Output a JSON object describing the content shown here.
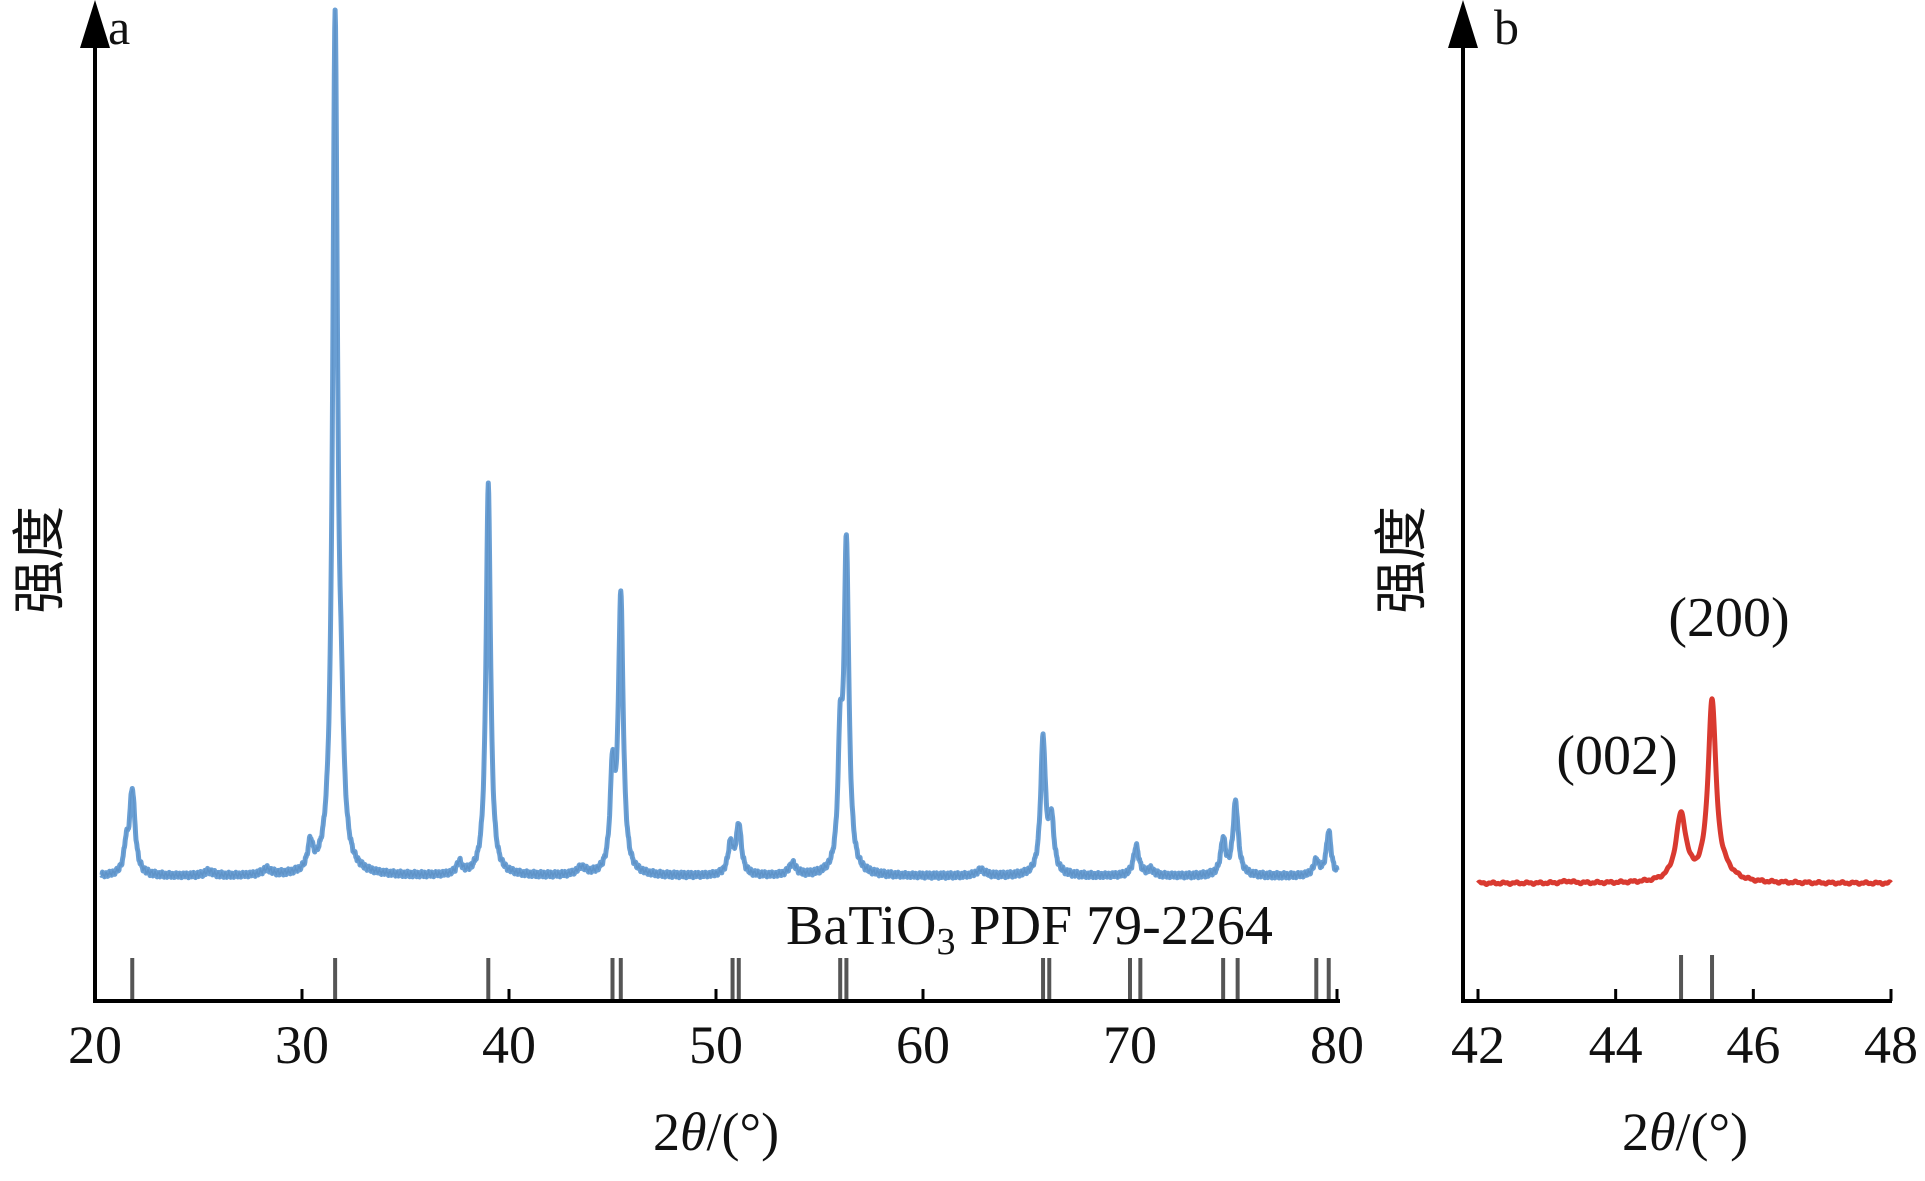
{
  "chart_data": [
    {
      "panel": "a",
      "type": "line",
      "xlabel": "2θ/(°)",
      "ylabel": "强度",
      "xlim": [
        20,
        80
      ],
      "xticks": [
        "20",
        "30",
        "40",
        "50",
        "60",
        "70",
        "80"
      ],
      "y_tick_labels": "none",
      "annotation": "BaTiO₃ PDF 79-2264",
      "colors": {
        "pattern": "#6a9fd4",
        "reference": "#555555",
        "axis": "#000000"
      },
      "series": [
        {
          "style": "pattern",
          "background": 3,
          "peaks": [
            {
              "x": 21.8,
              "y": 29,
              "w": 0.16
            },
            {
              "x": 21.5,
              "y": 8,
              "w": 0.12
            },
            {
              "x": 25.5,
              "y": 1.5,
              "w": 0.25
            },
            {
              "x": 28.3,
              "y": 2,
              "w": 0.25
            },
            {
              "x": 30.4,
              "y": 9,
              "w": 0.15
            },
            {
              "x": 31.6,
              "y": 290,
              "w": 0.14
            },
            {
              "x": 31.9,
              "y": 30,
              "w": 0.14
            },
            {
              "x": 37.6,
              "y": 4,
              "w": 0.15
            },
            {
              "x": 39.0,
              "y": 133,
              "w": 0.13
            },
            {
              "x": 43.5,
              "y": 2.5,
              "w": 0.25
            },
            {
              "x": 45.0,
              "y": 33,
              "w": 0.13
            },
            {
              "x": 45.4,
              "y": 94,
              "w": 0.14
            },
            {
              "x": 50.7,
              "y": 10,
              "w": 0.15
            },
            {
              "x": 51.1,
              "y": 17,
              "w": 0.15
            },
            {
              "x": 53.7,
              "y": 4,
              "w": 0.2
            },
            {
              "x": 56.0,
              "y": 40,
              "w": 0.12
            },
            {
              "x": 56.3,
              "y": 111,
              "w": 0.14
            },
            {
              "x": 62.8,
              "y": 2,
              "w": 0.25
            },
            {
              "x": 65.8,
              "y": 46,
              "w": 0.14
            },
            {
              "x": 66.2,
              "y": 18,
              "w": 0.15
            },
            {
              "x": 70.3,
              "y": 10,
              "w": 0.16
            },
            {
              "x": 71.0,
              "y": 2,
              "w": 0.2
            },
            {
              "x": 74.5,
              "y": 12,
              "w": 0.14
            },
            {
              "x": 75.1,
              "y": 25,
              "w": 0.15
            },
            {
              "x": 79.0,
              "y": 5,
              "w": 0.16
            },
            {
              "x": 79.6,
              "y": 15,
              "w": 0.14
            }
          ]
        },
        {
          "style": "reference",
          "positions": [
            21.8,
            31.6,
            39.0,
            45.0,
            45.4,
            50.8,
            51.1,
            56.0,
            56.3,
            65.8,
            66.1,
            70.0,
            70.5,
            74.5,
            75.2,
            79.0,
            79.6
          ]
        }
      ]
    },
    {
      "panel": "b",
      "type": "line",
      "xlabel": "2θ/(°)",
      "ylabel": "强度",
      "xlim": [
        42,
        48
      ],
      "xticks": [
        "42",
        "44",
        "46",
        "48"
      ],
      "y_tick_labels": "none",
      "colors": {
        "pattern": "#d93a30",
        "reference": "#555555",
        "axis": "#000000"
      },
      "series": [
        {
          "style": "pattern",
          "background": 2,
          "peaks": [
            {
              "x": 43.3,
              "y": 1.5,
              "w": 0.08
            },
            {
              "x": 44.95,
              "y": 50,
              "w": 0.09
            },
            {
              "x": 45.4,
              "y": 135,
              "w": 0.07
            },
            {
              "x": 45.6,
              "y": 5,
              "w": 0.15
            }
          ]
        },
        {
          "style": "reference",
          "positions": [
            44.95,
            45.4
          ]
        }
      ],
      "annotations": [
        {
          "text": "(002)",
          "x": 44.95
        },
        {
          "text": "(200)",
          "x": 45.4
        }
      ]
    }
  ]
}
